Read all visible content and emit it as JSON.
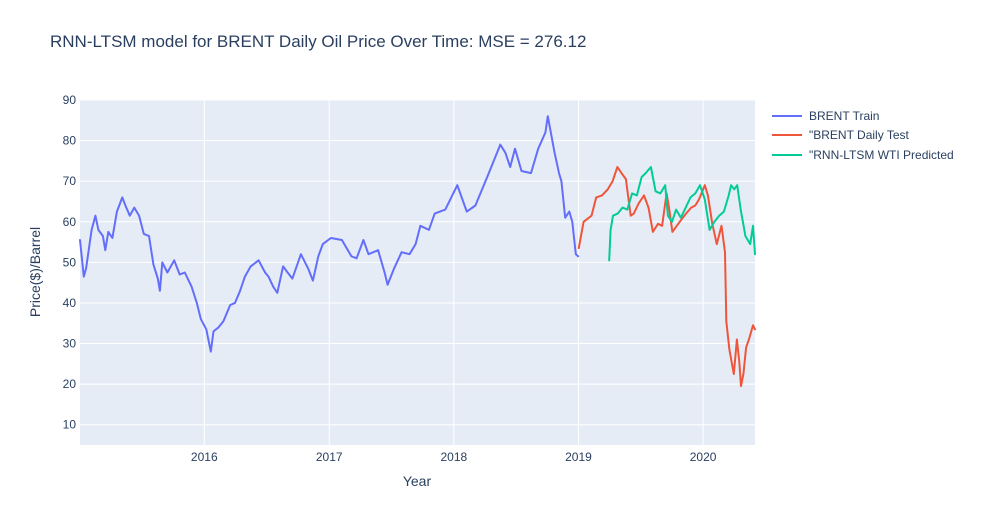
{
  "chart_data": {
    "type": "line",
    "title": "RNN-LTSM model for BRENT Daily Oil Price Over Time: MSE = 276.12",
    "xlabel": "Year",
    "ylabel": "Price($)/Barrel",
    "x_ticks": [
      "2016",
      "2017",
      "2018",
      "2019",
      "2020"
    ],
    "y_ticks": [
      10,
      20,
      30,
      40,
      50,
      60,
      70,
      80,
      90
    ],
    "xlim": [
      "2015-01-02",
      "2020-06-01"
    ],
    "ylim": [
      5,
      90
    ],
    "grid": true,
    "legend_position": "top-right",
    "plot_background": "#E5ECF6",
    "series": [
      {
        "name": "BRENT Train",
        "color": "#636EFA",
        "x": [
          "2015-01-02",
          "2015-01-13",
          "2015-01-20",
          "2015-02-05",
          "2015-02-16",
          "2015-02-25",
          "2015-03-10",
          "2015-03-17",
          "2015-03-26",
          "2015-04-07",
          "2015-04-20",
          "2015-05-06",
          "2015-05-15",
          "2015-05-28",
          "2015-06-10",
          "2015-06-24",
          "2015-07-08",
          "2015-07-23",
          "2015-08-05",
          "2015-08-18",
          "2015-08-24",
          "2015-08-31",
          "2015-09-15",
          "2015-10-05",
          "2015-10-21",
          "2015-11-05",
          "2015-11-25",
          "2015-12-10",
          "2015-12-22",
          "2016-01-07",
          "2016-01-20",
          "2016-01-28",
          "2016-02-12",
          "2016-02-26",
          "2016-03-17",
          "2016-03-31",
          "2016-04-15",
          "2016-04-29",
          "2016-05-16",
          "2016-06-08",
          "2016-06-27",
          "2016-07-07",
          "2016-07-21",
          "2016-08-02",
          "2016-08-19",
          "2016-09-01",
          "2016-09-15",
          "2016-10-10",
          "2016-10-31",
          "2016-11-14",
          "2016-11-30",
          "2016-12-13",
          "2017-01-06",
          "2017-02-07",
          "2017-03-07",
          "2017-03-22",
          "2017-04-11",
          "2017-04-26",
          "2017-05-24",
          "2017-06-12",
          "2017-06-21",
          "2017-07-10",
          "2017-08-01",
          "2017-08-24",
          "2017-09-11",
          "2017-09-25",
          "2017-10-20",
          "2017-11-06",
          "2017-12-07",
          "2018-01-11",
          "2018-02-08",
          "2018-03-05",
          "2018-04-11",
          "2018-05-17",
          "2018-06-01",
          "2018-06-15",
          "2018-06-29",
          "2018-07-18",
          "2018-08-15",
          "2018-09-05",
          "2018-09-26",
          "2018-10-03",
          "2018-10-23",
          "2018-11-05",
          "2018-11-12",
          "2018-11-23",
          "2018-12-05",
          "2018-12-14",
          "2018-12-24",
          "2018-12-31"
        ],
        "y": [
          55.5,
          46.5,
          48.5,
          58,
          61.5,
          58,
          56.5,
          53,
          57.5,
          56,
          62.5,
          66,
          64,
          61.5,
          63.5,
          61.5,
          57,
          56.5,
          49.5,
          46,
          43,
          50,
          47.5,
          50.5,
          47,
          47.5,
          44,
          40,
          36,
          33.5,
          28,
          33,
          34,
          35.5,
          39.5,
          40,
          43,
          46.5,
          49,
          50.5,
          47.5,
          46.5,
          44,
          42.5,
          49,
          47.5,
          46,
          52,
          48.5,
          45.5,
          51.5,
          54.5,
          56,
          55.5,
          51.5,
          51,
          55.5,
          52,
          53,
          47.5,
          44.5,
          48.5,
          52.5,
          52,
          54.5,
          59,
          58,
          62,
          63,
          69,
          62.5,
          64,
          71.5,
          79,
          77,
          73.5,
          78,
          72.5,
          72,
          78,
          82,
          86,
          77,
          72,
          70,
          61,
          62.5,
          60,
          52,
          51.5
        ]
      },
      {
        "name": "\"BRENT Daily Test",
        "color": "#EF553B",
        "x": [
          "2019-01-02",
          "2019-01-16",
          "2019-02-08",
          "2019-02-22",
          "2019-03-11",
          "2019-03-28",
          "2019-04-11",
          "2019-04-25",
          "2019-05-07",
          "2019-05-20",
          "2019-06-03",
          "2019-06-12",
          "2019-06-26",
          "2019-07-12",
          "2019-07-25",
          "2019-08-07",
          "2019-08-22",
          "2019-09-03",
          "2019-09-16",
          "2019-09-24",
          "2019-10-03",
          "2019-10-16",
          "2019-10-29",
          "2019-11-12",
          "2019-11-27",
          "2019-12-09",
          "2019-12-20",
          "2020-01-06",
          "2020-01-15",
          "2020-01-28",
          "2020-02-10",
          "2020-02-24",
          "2020-03-05",
          "2020-03-09",
          "2020-03-18",
          "2020-03-31",
          "2020-04-09",
          "2020-04-16",
          "2020-04-21",
          "2020-04-28",
          "2020-05-06",
          "2020-05-14",
          "2020-05-26",
          "2020-06-01"
        ],
        "y": [
          53.5,
          60,
          61.5,
          66,
          66.5,
          68,
          70,
          73.5,
          72,
          70.5,
          61.5,
          62,
          64.5,
          66.5,
          63.5,
          57.5,
          59.5,
          59,
          67,
          63,
          57.5,
          59,
          60.5,
          62,
          63.5,
          64,
          65.5,
          69,
          66.5,
          59.5,
          54.5,
          59,
          52.5,
          35.5,
          28.5,
          22.5,
          31,
          25.5,
          19.5,
          22.5,
          29,
          31,
          34.5,
          33.5
        ]
      },
      {
        "name": "\"RNN-LTSM WTI Predicted",
        "color": "#00CC96",
        "x": [
          "2019-04-01",
          "2019-04-05",
          "2019-04-12",
          "2019-04-26",
          "2019-05-10",
          "2019-05-24",
          "2019-06-07",
          "2019-06-21",
          "2019-07-05",
          "2019-07-17",
          "2019-08-01",
          "2019-08-15",
          "2019-08-29",
          "2019-09-12",
          "2019-09-20",
          "2019-10-02",
          "2019-10-14",
          "2019-10-28",
          "2019-11-11",
          "2019-11-25",
          "2019-12-09",
          "2019-12-23",
          "2020-01-06",
          "2020-01-20",
          "2020-02-03",
          "2020-02-17",
          "2020-03-02",
          "2020-03-16",
          "2020-03-23",
          "2020-04-01",
          "2020-04-10",
          "2020-04-20",
          "2020-05-04",
          "2020-05-18",
          "2020-05-26",
          "2020-06-01"
        ],
        "y": [
          50.5,
          58,
          61.5,
          62,
          63.5,
          63,
          67,
          66.5,
          71,
          72,
          73.5,
          67.5,
          67,
          69,
          61.5,
          60,
          63,
          61,
          63.5,
          66,
          67,
          69,
          65.5,
          58,
          60,
          61.5,
          62.5,
          66.5,
          69,
          68,
          69,
          63,
          56.5,
          54.5,
          59,
          52
        ]
      }
    ]
  }
}
